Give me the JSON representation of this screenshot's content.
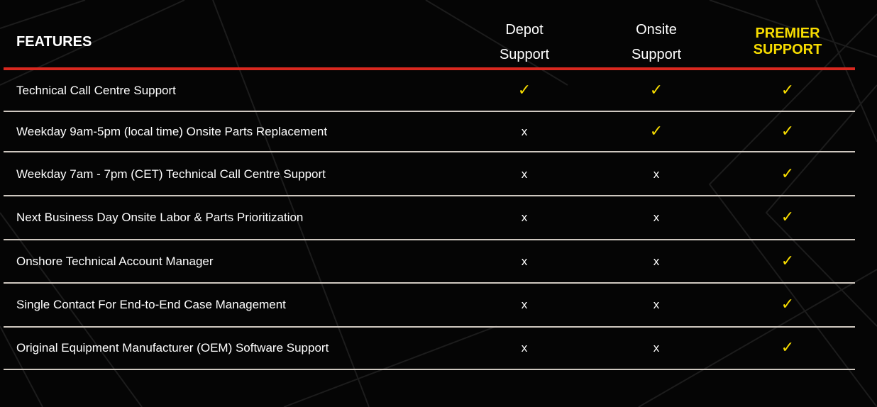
{
  "header": {
    "features_label": "FEATURES",
    "columns": [
      {
        "line1": "Depot",
        "line2": "Support"
      },
      {
        "line1": "Onsite",
        "line2": "Support"
      },
      {
        "line1": "PREMIER",
        "line2": "SUPPORT"
      }
    ]
  },
  "colors": {
    "accent_yellow": "#f7dc00",
    "header_rule_red": "#d9281f",
    "divider": "#cfc8c0"
  },
  "symbols": {
    "yes": "✓",
    "no": "x"
  },
  "rows": [
    {
      "feature": "Technical Call Centre Support",
      "values": [
        "✓",
        "✓",
        "✓"
      ]
    },
    {
      "feature": "Weekday 9am-5pm (local time) Onsite Parts Replacement",
      "values": [
        "x",
        "✓",
        "✓"
      ]
    },
    {
      "feature": "Weekday 7am - 7pm (CET) Technical Call Centre Support",
      "values": [
        "x",
        "x",
        "✓"
      ]
    },
    {
      "feature": "Next Business Day Onsite Labor & Parts Prioritization",
      "values": [
        "x",
        "x",
        "✓"
      ]
    },
    {
      "feature": "Onshore Technical Account Manager",
      "values": [
        "x",
        "x",
        "✓"
      ]
    },
    {
      "feature": "Single Contact For End-to-End Case Management",
      "values": [
        "x",
        "x",
        "✓"
      ]
    },
    {
      "feature": "Original Equipment Manufacturer (OEM) Software Support",
      "values": [
        "x",
        "x",
        "✓"
      ]
    }
  ]
}
